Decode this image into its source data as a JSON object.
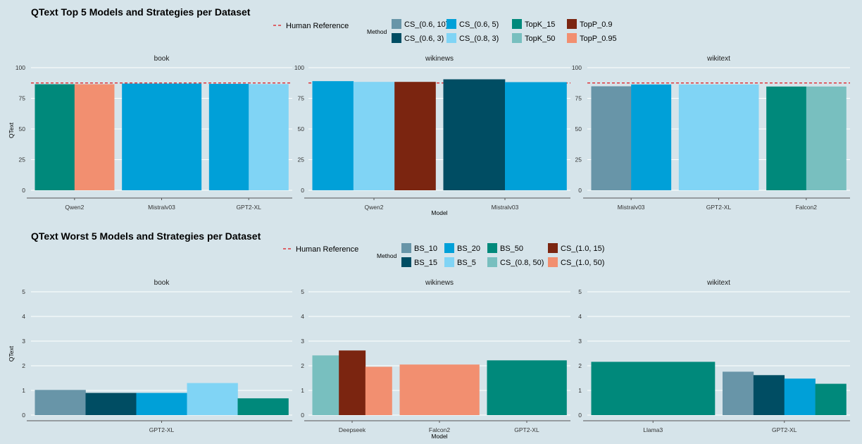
{
  "colors": {
    "CS_(0.6, 10)": "#6895a8",
    "CS_(0.6, 5)": "#00a0d8",
    "TopK_15": "#00897b",
    "TopP_0.9": "#7b2510",
    "CS_(0.6, 3)": "#004d63",
    "CS_(0.8, 3)": "#80d4f5",
    "TopK_50": "#78bfbf",
    "TopP_0.95": "#f28f70",
    "BS_10": "#6895a8",
    "BS_20": "#00a0d8",
    "BS_50": "#00897b",
    "CS_(1.0, 15)": "#7b2510",
    "BS_15": "#004d63",
    "BS_5": "#80d4f5",
    "CS_(0.8, 50)": "#78bfbf",
    "CS_(1.0, 50)": "#f28f70",
    "human_reference": "#e0141b"
  },
  "chart_data": [
    {
      "type": "bar",
      "title": "QText Top 5 Models and Strategies per Dataset",
      "xlabel": "Model",
      "ylabel": "QText",
      "ylim": [
        0,
        100
      ],
      "yticks": [
        0,
        25,
        50,
        75,
        100
      ],
      "grid": true,
      "legend_position": "top",
      "legend_title": "Method",
      "legend_ref_label": "Human Reference",
      "legend_entries": [
        "CS_(0.6, 10)",
        "CS_(0.6, 5)",
        "TopK_15",
        "TopP_0.9",
        "CS_(0.6, 3)",
        "CS_(0.8, 3)",
        "TopK_50",
        "TopP_0.95"
      ],
      "human_reference": 87.5,
      "facets": [
        {
          "label": "book",
          "groups": [
            {
              "model": "Qwen2",
              "bars": [
                {
                  "method": "TopK_15",
                  "value": 86.5
                },
                {
                  "method": "TopP_0.95",
                  "value": 86.5
                }
              ]
            },
            {
              "model": "Mistralv03",
              "bars": [
                {
                  "method": "CS_(0.6, 5)",
                  "value": 87.0
                }
              ]
            },
            {
              "model": "GPT2-XL",
              "bars": [
                {
                  "method": "CS_(0.6, 5)",
                  "value": 86.8
                },
                {
                  "method": "CS_(0.8, 3)",
                  "value": 86.6
                }
              ]
            }
          ]
        },
        {
          "label": "wikinews",
          "groups": [
            {
              "model": "Qwen2",
              "bars": [
                {
                  "method": "CS_(0.6, 5)",
                  "value": 89.0
                },
                {
                  "method": "CS_(0.8, 3)",
                  "value": 88.4
                },
                {
                  "method": "TopP_0.9",
                  "value": 88.4
                }
              ]
            },
            {
              "model": "Mistralv03",
              "bars": [
                {
                  "method": "CS_(0.6, 3)",
                  "value": 90.5
                },
                {
                  "method": "CS_(0.6, 5)",
                  "value": 88.2
                }
              ]
            }
          ]
        },
        {
          "label": "wikitext",
          "groups": [
            {
              "model": "Mistralv03",
              "bars": [
                {
                  "method": "CS_(0.6, 10)",
                  "value": 84.8
                },
                {
                  "method": "CS_(0.6, 5)",
                  "value": 86.3
                }
              ]
            },
            {
              "model": "GPT2-XL",
              "bars": [
                {
                  "method": "CS_(0.8, 3)",
                  "value": 86.3
                }
              ]
            },
            {
              "model": "Falcon2",
              "bars": [
                {
                  "method": "TopK_15",
                  "value": 84.6
                },
                {
                  "method": "TopK_50",
                  "value": 84.6
                }
              ]
            }
          ]
        }
      ]
    },
    {
      "type": "bar",
      "title": "QText Worst 5 Models and Strategies per Dataset",
      "xlabel": "Model",
      "ylabel": "QText",
      "ylim": [
        0,
        5
      ],
      "yticks": [
        0,
        1,
        2,
        3,
        4,
        5
      ],
      "grid": true,
      "legend_position": "top",
      "legend_title": "Method",
      "legend_ref_label": "Human Reference",
      "legend_entries": [
        "BS_10",
        "BS_20",
        "BS_50",
        "CS_(1.0, 15)",
        "BS_15",
        "BS_5",
        "CS_(0.8, 50)",
        "CS_(1.0, 50)"
      ],
      "facets": [
        {
          "label": "book",
          "groups": [
            {
              "model": "GPT2-XL",
              "bars": [
                {
                  "method": "BS_10",
                  "value": 1.02
                },
                {
                  "method": "BS_15",
                  "value": 0.9
                },
                {
                  "method": "BS_20",
                  "value": 0.9
                },
                {
                  "method": "BS_5",
                  "value": 1.3
                },
                {
                  "method": "BS_50",
                  "value": 0.68
                }
              ]
            }
          ]
        },
        {
          "label": "wikinews",
          "groups": [
            {
              "model": "Deepseek",
              "bars": [
                {
                  "method": "CS_(0.8, 50)",
                  "value": 2.42
                },
                {
                  "method": "CS_(1.0, 15)",
                  "value": 2.62
                },
                {
                  "method": "CS_(1.0, 50)",
                  "value": 1.96
                }
              ]
            },
            {
              "model": "Falcon2",
              "bars": [
                {
                  "method": "CS_(1.0, 50)",
                  "value": 2.05
                }
              ]
            },
            {
              "model": "GPT2-XL",
              "bars": [
                {
                  "method": "BS_50",
                  "value": 2.22
                }
              ]
            }
          ]
        },
        {
          "label": "wikitext",
          "groups": [
            {
              "model": "Llama3",
              "bars": [
                {
                  "method": "BS_50",
                  "value": 2.16
                }
              ]
            },
            {
              "model": "GPT2-XL",
              "bars": [
                {
                  "method": "BS_10",
                  "value": 1.76
                },
                {
                  "method": "BS_15",
                  "value": 1.62
                },
                {
                  "method": "BS_20",
                  "value": 1.48
                },
                {
                  "method": "BS_50",
                  "value": 1.27
                }
              ]
            }
          ]
        }
      ]
    }
  ]
}
